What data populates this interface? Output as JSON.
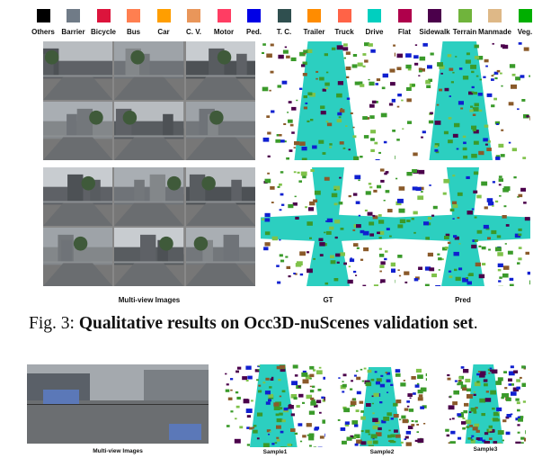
{
  "legend": [
    {
      "label": "Others",
      "color": "#000000"
    },
    {
      "label": "Barrier",
      "color": "#707b87"
    },
    {
      "label": "Bicycle",
      "color": "#dc143c"
    },
    {
      "label": "Bus",
      "color": "#ff7f50"
    },
    {
      "label": "Car",
      "color": "#ff9e00"
    },
    {
      "label": "C. V.",
      "color": "#e9965a"
    },
    {
      "label": "Motor",
      "color": "#ff3d63"
    },
    {
      "label": "Ped.",
      "color": "#0000e6"
    },
    {
      "label": "T. C.",
      "color": "#2f4f4f"
    },
    {
      "label": "Trailer",
      "color": "#ff8c00"
    },
    {
      "label": "Truck",
      "color": "#ff6347"
    },
    {
      "label": "Drive",
      "color": "#00cfbf"
    },
    {
      "label": "Flat",
      "color": "#af004b"
    },
    {
      "label": "Sidewalk",
      "color": "#4b004b"
    },
    {
      "label": "Terrain",
      "color": "#70b43c"
    },
    {
      "label": "Manmade",
      "color": "#deb887"
    },
    {
      "label": "Veg.",
      "color": "#00af00"
    }
  ],
  "figure1": {
    "col_captions": [
      "Multi-view Images",
      "GT",
      "Pred"
    ]
  },
  "caption": {
    "prefix": "Fig. 3: ",
    "bold": "Qualitative results on Occ3D-nuScenes validation set",
    "suffix": "."
  },
  "figure2": {
    "captions": [
      "Multi-view Images",
      "Sample1",
      "Sample2",
      "Sample3"
    ]
  }
}
